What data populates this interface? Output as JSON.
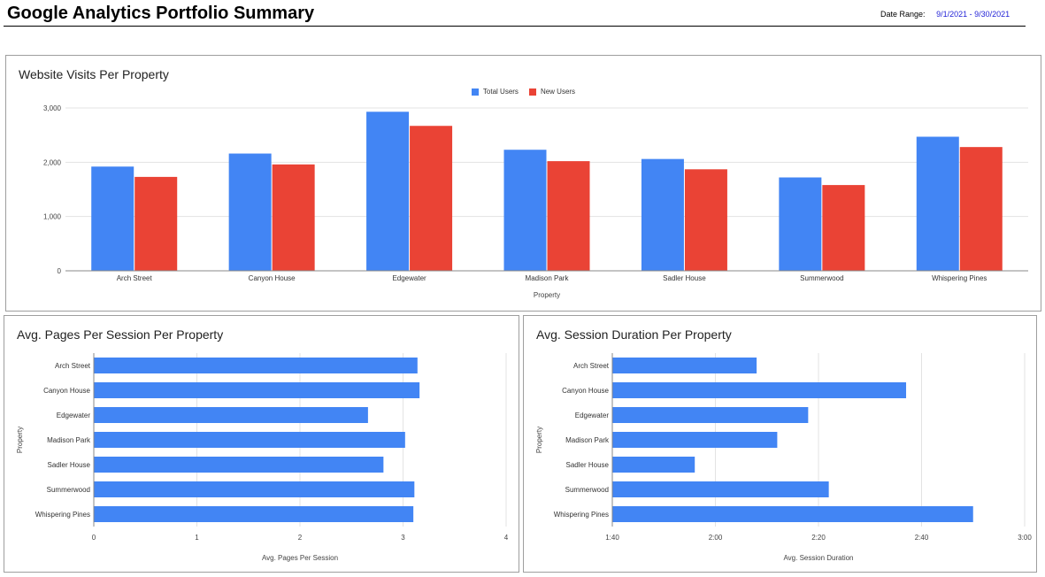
{
  "header": {
    "title": "Google Analytics Portfolio Summary",
    "date_range_label": "Date Range:",
    "date_range_value": "9/1/2021 - 9/30/2021"
  },
  "colors": {
    "blue": "#4285f4",
    "red": "#ea4335",
    "grid": "#e3e3e3",
    "axis": "#888888"
  },
  "chart_data": [
    {
      "type": "bar",
      "title": "Website Visits Per Property",
      "xlabel": "Property",
      "ylabel": "",
      "ylim": [
        0,
        3000
      ],
      "yticks": [
        0,
        1000,
        2000,
        3000
      ],
      "ytick_labels": [
        "0",
        "1,000",
        "2,000",
        "3,000"
      ],
      "grid": true,
      "legend": "top-center",
      "categories": [
        "Arch Street",
        "Canyon House",
        "Edgewater",
        "Madison Park",
        "Sadler House",
        "Summerwood",
        "Whispering Pines"
      ],
      "series": [
        {
          "name": "Total Users",
          "color": "#4285f4",
          "values": [
            1920,
            2160,
            2930,
            2230,
            2060,
            1720,
            2470
          ]
        },
        {
          "name": "New Users",
          "color": "#ea4335",
          "values": [
            1730,
            1960,
            2670,
            2020,
            1870,
            1580,
            2280
          ]
        }
      ]
    },
    {
      "type": "bar",
      "orientation": "horizontal",
      "title": "Avg. Pages Per Session Per Property",
      "xlabel": "Avg. Pages Per Session",
      "ylabel": "Property",
      "xlim": [
        0,
        4
      ],
      "xticks": [
        0,
        1,
        2,
        3,
        4
      ],
      "xtick_labels": [
        "0",
        "1",
        "2",
        "3",
        "4"
      ],
      "grid": true,
      "categories": [
        "Arch Street",
        "Canyon House",
        "Edgewater",
        "Madison Park",
        "Sadler House",
        "Summerwood",
        "Whispering Pines"
      ],
      "values": [
        3.14,
        3.16,
        2.66,
        3.02,
        2.81,
        3.11,
        3.1
      ],
      "color": "#4285f4"
    },
    {
      "type": "bar",
      "orientation": "horizontal",
      "title": "Avg. Session Duration Per Property",
      "xlabel": "Avg. Session Duration",
      "ylabel": "Property",
      "x_unit": "seconds",
      "xlim": [
        100,
        180
      ],
      "xticks": [
        100,
        120,
        140,
        160,
        180
      ],
      "xtick_labels": [
        "1:40",
        "2:00",
        "2:20",
        "2:40",
        "3:00"
      ],
      "grid": true,
      "categories": [
        "Arch Street",
        "Canyon House",
        "Edgewater",
        "Madison Park",
        "Sadler House",
        "Summerwood",
        "Whispering Pines"
      ],
      "values": [
        128,
        157,
        138,
        132,
        116,
        142,
        170
      ],
      "color": "#4285f4"
    }
  ]
}
